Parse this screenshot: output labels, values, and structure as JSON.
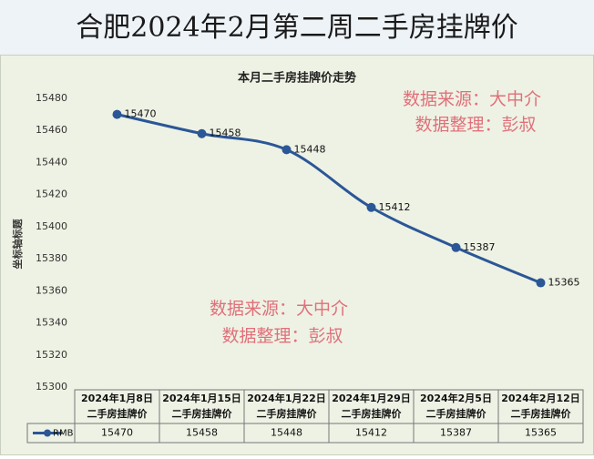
{
  "chart_data": {
    "type": "line",
    "header": "合肥2024年2月第二周二手房挂牌价",
    "title": "本月二手房挂牌价走势",
    "y_label": "坐标轴标题",
    "categories": [
      [
        "2024年1月8日",
        "二手房挂牌价"
      ],
      [
        "2024年1月15日",
        "二手房挂牌价"
      ],
      [
        "2024年1月22日",
        "二手房挂牌价"
      ],
      [
        "2024年1月29日",
        "二手房挂牌价"
      ],
      [
        "2024年2月5日",
        "二手房挂牌价"
      ],
      [
        "2024年2月12日",
        "二手房挂牌价"
      ]
    ],
    "series": [
      {
        "name": "RMB",
        "color": "#2b5797",
        "values": [
          15470,
          15458,
          15448,
          15412,
          15387,
          15365
        ]
      }
    ],
    "ylim": [
      15300,
      15480
    ],
    "yticks": [
      15300,
      15320,
      15340,
      15360,
      15380,
      15400,
      15420,
      15440,
      15460,
      15480
    ],
    "grid": false,
    "annotations": [
      [
        "数据来源：大中介",
        "数据整理：彭叔"
      ],
      [
        "数据来源：大中介",
        "数据整理：彭叔"
      ]
    ]
  }
}
